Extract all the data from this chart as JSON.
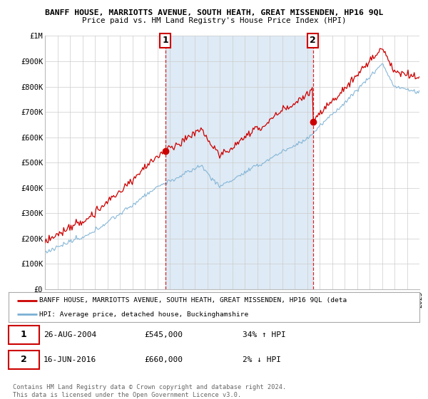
{
  "title": "BANFF HOUSE, MARRIOTTS AVENUE, SOUTH HEATH, GREAT MISSENDEN, HP16 9QL",
  "subtitle": "Price paid vs. HM Land Registry's House Price Index (HPI)",
  "sale1_date": "26-AUG-2004",
  "sale1_price": 545000,
  "sale1_year": 2004.65,
  "sale1_hpi_pct": "34% ↑ HPI",
  "sale2_date": "16-JUN-2016",
  "sale2_price": 660000,
  "sale2_year": 2016.46,
  "sale2_hpi_pct": "2% ↓ HPI",
  "red_line_color": "#cc0000",
  "blue_line_color": "#7ab0d4",
  "shade_color": "#deeaf5",
  "legend_text1": "BANFF HOUSE, MARRIOTTS AVENUE, SOUTH HEATH, GREAT MISSENDEN, HP16 9QL (deta",
  "legend_text2": "HPI: Average price, detached house, Buckinghamshire",
  "footer": "Contains HM Land Registry data © Crown copyright and database right 2024.\nThis data is licensed under the Open Government Licence v3.0.",
  "ylim": [
    0,
    1000000
  ],
  "yticks": [
    0,
    100000,
    200000,
    300000,
    400000,
    500000,
    600000,
    700000,
    800000,
    900000,
    1000000
  ],
  "ytick_labels": [
    "£0",
    "£100K",
    "£200K",
    "£300K",
    "£400K",
    "£500K",
    "£600K",
    "£700K",
    "£800K",
    "£900K",
    "£1M"
  ],
  "background_color": "#ffffff",
  "grid_color": "#cccccc",
  "xstart": 1995,
  "xend": 2025
}
